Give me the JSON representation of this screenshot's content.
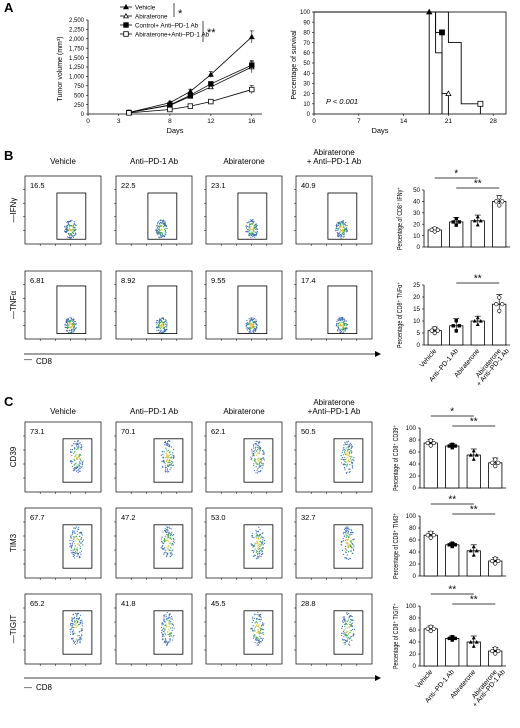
{
  "panel_labels": {
    "A": "A",
    "B": "B",
    "C": "C"
  },
  "chart_data": [
    {
      "type": "line",
      "panel": "A-left",
      "ylabel": "Tumor volume (mm³)",
      "xlabel": "Days",
      "x_ticks": [
        "0",
        "3",
        "8",
        "12",
        "16"
      ],
      "y_ticks": [
        "0",
        "250",
        "500",
        "750",
        "1,000",
        "1,250",
        "1,500",
        "1,750",
        "2,000",
        "2,250",
        "2,500"
      ],
      "xlim": [
        0,
        17
      ],
      "ylim": [
        0,
        2500
      ],
      "x": [
        4,
        8,
        10,
        12,
        16
      ],
      "series": [
        {
          "name": "Vehicle",
          "marker": "filled-triangle",
          "values": [
            40,
            300,
            600,
            1050,
            2050
          ],
          "err": [
            20,
            40,
            60,
            80,
            160
          ]
        },
        {
          "name": "Abiraterone",
          "marker": "open-triangle",
          "values": [
            40,
            230,
            470,
            720,
            1250
          ],
          "err": [
            20,
            30,
            50,
            60,
            150
          ]
        },
        {
          "name": "Control+ Anti–PD-1 Ab",
          "marker": "filled-square",
          "values": [
            40,
            240,
            500,
            800,
            1300
          ],
          "err": [
            20,
            30,
            50,
            60,
            120
          ]
        },
        {
          "name": "Abiraterone+Anti–PD-1 Ab",
          "marker": "open-square",
          "values": [
            30,
            120,
            210,
            330,
            650
          ],
          "err": [
            15,
            20,
            30,
            40,
            110
          ]
        }
      ],
      "significance": [
        "*",
        "**"
      ]
    },
    {
      "type": "line",
      "panel": "A-right",
      "subtype": "survival",
      "ylabel": "Percentage of survival",
      "xlabel": "Days",
      "x_ticks": [
        "0",
        "7",
        "14",
        "21",
        "28"
      ],
      "y_ticks": [
        "0",
        "10",
        "20",
        "30",
        "40",
        "50",
        "60",
        "70",
        "80",
        "90",
        "100"
      ],
      "xlim": [
        0,
        30
      ],
      "ylim": [
        0,
        100
      ],
      "annotation": "P < 0.001",
      "series": [
        {
          "name": "Vehicle",
          "marker": "filled-triangle",
          "steps": [
            [
              0,
              100
            ],
            [
              18,
              100
            ],
            [
              18,
              0
            ]
          ]
        },
        {
          "name": "Abiraterone",
          "marker": "open-triangle",
          "steps": [
            [
              0,
              100
            ],
            [
              19,
              100
            ],
            [
              19,
              60
            ],
            [
              20,
              60
            ],
            [
              20,
              20
            ],
            [
              21,
              20
            ],
            [
              21,
              0
            ]
          ]
        },
        {
          "name": "Control+ Anti–PD-1 Ab",
          "marker": "filled-square",
          "steps": [
            [
              0,
              100
            ],
            [
              19,
              100
            ],
            [
              19,
              80
            ],
            [
              20,
              80
            ],
            [
              20,
              0
            ]
          ]
        },
        {
          "name": "Abiraterone+Anti–PD-1 Ab",
          "marker": "open-square",
          "steps": [
            [
              0,
              100
            ],
            [
              21,
              100
            ],
            [
              21,
              70
            ],
            [
              23,
              70
            ],
            [
              23,
              10
            ],
            [
              26,
              10
            ],
            [
              26,
              0
            ]
          ]
        }
      ]
    },
    {
      "type": "bar",
      "panel": "B-IFNg",
      "ylabel": "Percentage of CD8⁺ IFNγ⁺",
      "categories": [
        "Vehicle",
        "Anti–PD-1 Ab",
        "Abiraterone",
        "Abiraterone + Anti–PD-1 Ab"
      ],
      "values": [
        15,
        22,
        23,
        40
      ],
      "err": [
        2,
        4,
        5,
        5
      ],
      "ylim": [
        0,
        50
      ],
      "y_ticks": [
        "0",
        "10",
        "20",
        "30",
        "40",
        "50"
      ],
      "significance": [
        {
          "from": 0,
          "to": 2,
          "label": "*"
        },
        {
          "from": 1,
          "to": 3,
          "label": "**"
        }
      ]
    },
    {
      "type": "bar",
      "panel": "B-TNFa",
      "ylabel": "Percentage of CD8⁺ TNFα⁺",
      "categories": [
        "Vehicle",
        "Anti–PD-1 Ab",
        "Abiraterone",
        "Abiraterone + Anti–PD-1 Ab"
      ],
      "values": [
        6,
        8,
        10,
        17
      ],
      "err": [
        1.5,
        3,
        2,
        4
      ],
      "ylim": [
        0,
        25
      ],
      "y_ticks": [
        "0",
        "5",
        "10",
        "15",
        "20",
        "25"
      ],
      "significance": [
        {
          "from": 1,
          "to": 3,
          "label": "**"
        }
      ]
    },
    {
      "type": "bar",
      "panel": "C-CD39",
      "ylabel": "Percentage of CD8⁺ CD39⁺",
      "categories": [
        "Vehicle",
        "Anti–PD-1 Ab",
        "Abiraterone",
        "Abiraterone + Anti–PD-1 Ab"
      ],
      "values": [
        75,
        70,
        55,
        42
      ],
      "err": [
        6,
        4,
        10,
        8
      ],
      "ylim": [
        0,
        100
      ],
      "y_ticks": [
        "0",
        "20",
        "40",
        "60",
        "80",
        "100"
      ],
      "significance": [
        {
          "from": 0,
          "to": 2,
          "label": "*"
        },
        {
          "from": 1,
          "to": 3,
          "label": "**"
        }
      ]
    },
    {
      "type": "bar",
      "panel": "C-TIM3",
      "ylabel": "Percentage of CD8⁺ TIM3⁺",
      "categories": [
        "Vehicle",
        "Anti–PD-1 Ab",
        "Abiraterone",
        "Abiraterone + Anti–PD-1 Ab"
      ],
      "values": [
        68,
        52,
        42,
        25
      ],
      "err": [
        6,
        4,
        10,
        6
      ],
      "ylim": [
        0,
        100
      ],
      "y_ticks": [
        "0",
        "20",
        "40",
        "60",
        "80",
        "100"
      ],
      "significance": [
        {
          "from": 0,
          "to": 2,
          "label": "**"
        },
        {
          "from": 1,
          "to": 3,
          "label": "**"
        }
      ]
    },
    {
      "type": "bar",
      "panel": "C-TIGIT",
      "ylabel": "Percentage of CD8⁺ TIGIT⁺",
      "categories": [
        "Vehicle",
        "Anti–PD-1 Ab",
        "Abiraterone",
        "Abiraterone + Anti–PD-1 Ab"
      ],
      "values": [
        62,
        46,
        40,
        25
      ],
      "err": [
        5,
        4,
        10,
        6
      ],
      "ylim": [
        0,
        100
      ],
      "y_ticks": [
        "0",
        "20",
        "40",
        "60",
        "80",
        "100"
      ],
      "significance": [
        {
          "from": 0,
          "to": 2,
          "label": "**"
        },
        {
          "from": 1,
          "to": 3,
          "label": "**"
        }
      ]
    }
  ],
  "flow_B": {
    "columns": [
      "Vehicle",
      "Anti–PD-1 Ab",
      "Abiraterone",
      "Abiraterone\n+ Anti–PD-1 Ab"
    ],
    "rows": [
      {
        "marker": "IFNγ",
        "values": [
          "16.5",
          "22.5",
          "23.1",
          "40.9"
        ]
      },
      {
        "marker": "TNFα",
        "values": [
          "6.81",
          "8.92",
          "9.55",
          "17.4"
        ]
      }
    ],
    "xaxis": "CD8"
  },
  "flow_C": {
    "columns": [
      "Vehicle",
      "Anti–PD-1 Ab",
      "Abiraterone",
      "Abiraterone\n+Anti–PD-1 Ab"
    ],
    "rows": [
      {
        "marker": "CD39",
        "values": [
          "73.1",
          "70.1",
          "62.1",
          "50.5"
        ]
      },
      {
        "marker": "TIM3",
        "values": [
          "67.7",
          "47.2",
          "53.0",
          "32.7"
        ]
      },
      {
        "marker": "TIGIT",
        "values": [
          "65.2",
          "41.8",
          "45.5",
          "28.8"
        ]
      }
    ],
    "xaxis": "CD8"
  },
  "colors": {
    "ink": "#000000",
    "dot_blue": "#3f6fb5",
    "dot_green": "#3aa84a",
    "dot_yellow": "#d9c22b",
    "box": "#000000"
  }
}
